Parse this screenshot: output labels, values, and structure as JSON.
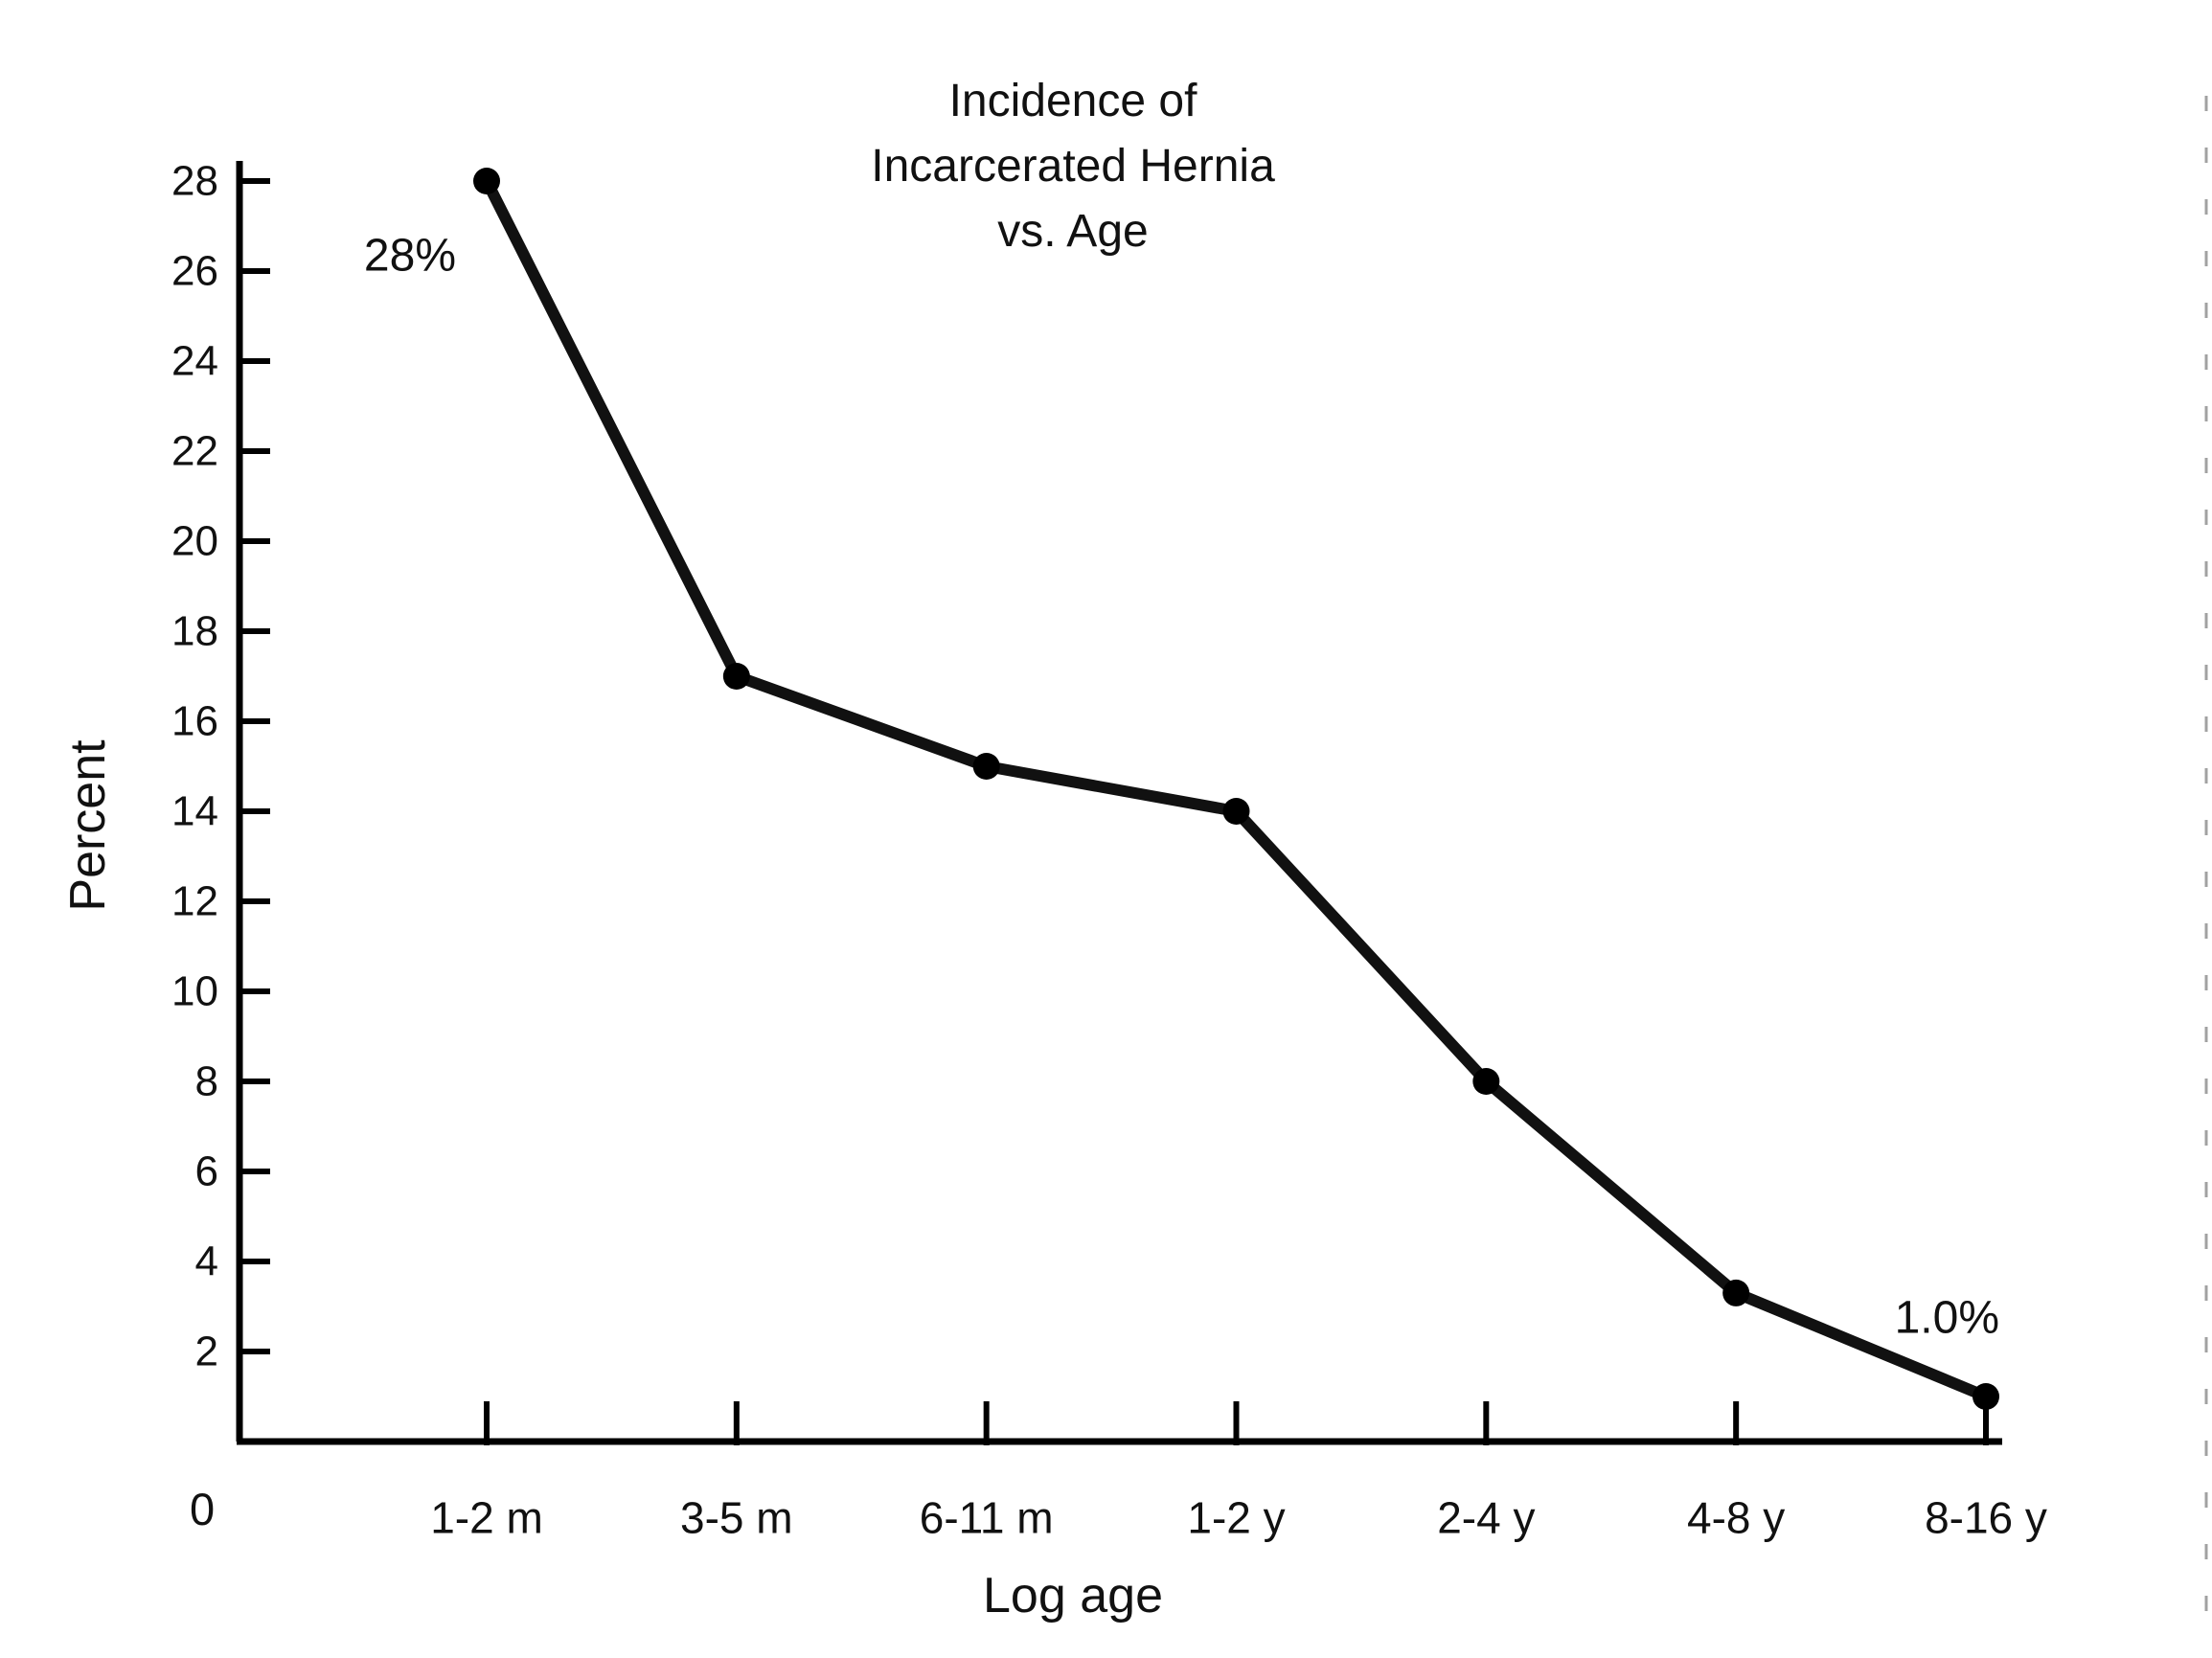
{
  "figure": {
    "title_lines": [
      "Incidence of",
      "Incarcerated Hernia",
      "vs. Age"
    ],
    "ylabel": "Percent",
    "xlabel": "Log age",
    "origin_label": "0",
    "annotation_first": "28%",
    "annotation_last": "1.0%"
  },
  "chart_data": {
    "type": "line",
    "title": "Incidence of Incarcerated Hernia vs. Age",
    "xlabel": "Log age",
    "ylabel": "Percent",
    "categories": [
      "1-2 m",
      "3-5 m",
      "6-11 m",
      "1-2 y",
      "2-4 y",
      "4-8 y",
      "8-16 y"
    ],
    "values": [
      28,
      17,
      15,
      14,
      8,
      3.3,
      1.0
    ],
    "ylim": [
      0,
      28
    ],
    "yticks": [
      2,
      4,
      6,
      8,
      10,
      12,
      14,
      16,
      18,
      20,
      22,
      24,
      26,
      28
    ],
    "grid": false,
    "legend": false,
    "line_color": "#111111",
    "marker": "circle",
    "annotations": [
      {
        "text": "28%",
        "category": "1-2 m",
        "value": 28
      },
      {
        "text": "1.0%",
        "category": "8-16 y",
        "value": 1.0
      }
    ]
  }
}
